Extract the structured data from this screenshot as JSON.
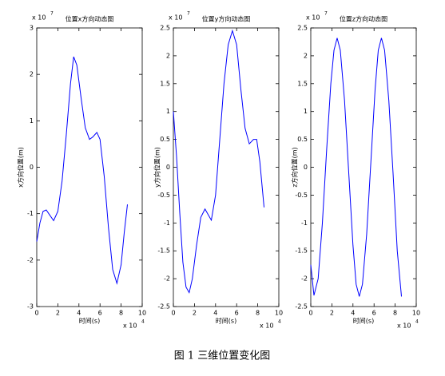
{
  "chart_data": [
    {
      "type": "line",
      "title": "位置x方向动态图",
      "xlabel": "时间(s)",
      "ylabel": "x方向位置(m)",
      "x": [
        0,
        0.3,
        0.6,
        0.9,
        1.2,
        1.6,
        2.0,
        2.4,
        2.8,
        3.2,
        3.5,
        3.8,
        4.2,
        4.6,
        5.0,
        5.3,
        5.7,
        6.0,
        6.4,
        6.8,
        7.2,
        7.6,
        8.0,
        8.3,
        8.6
      ],
      "values": [
        -1.6,
        -1.2,
        -0.95,
        -0.92,
        -1.02,
        -1.15,
        -0.95,
        -0.3,
        0.7,
        1.8,
        2.38,
        2.2,
        1.5,
        0.85,
        0.6,
        0.65,
        0.75,
        0.6,
        -0.2,
        -1.3,
        -2.2,
        -2.5,
        -2.1,
        -1.4,
        -0.8
      ],
      "color": "#0000ff",
      "xlim": [
        0,
        10
      ],
      "xticks": [
        0,
        2,
        4,
        6,
        8,
        10
      ],
      "ylim": [
        -3,
        3
      ],
      "yticks": [
        -3,
        -2,
        -1,
        0,
        1,
        2,
        3
      ],
      "x_exponent": {
        "base": "x 10",
        "power": "4"
      },
      "y_exponent": {
        "base": "x 10",
        "power": "7"
      }
    },
    {
      "type": "line",
      "title": "位置y方向动态图",
      "xlabel": "时间(s)",
      "ylabel": "y方向位置(m)",
      "x": [
        0,
        0.3,
        0.6,
        0.9,
        1.2,
        1.5,
        1.8,
        2.2,
        2.6,
        3.0,
        3.3,
        3.6,
        4.0,
        4.4,
        4.8,
        5.2,
        5.6,
        6.0,
        6.4,
        6.8,
        7.2,
        7.6,
        7.9,
        8.2,
        8.6
      ],
      "values": [
        1.0,
        0.2,
        -0.8,
        -1.7,
        -2.15,
        -2.25,
        -2.0,
        -1.4,
        -0.9,
        -0.75,
        -0.85,
        -0.95,
        -0.5,
        0.5,
        1.5,
        2.2,
        2.45,
        2.2,
        1.4,
        0.7,
        0.42,
        0.5,
        0.5,
        0.1,
        -0.72
      ],
      "color": "#0000ff",
      "xlim": [
        0,
        10
      ],
      "xticks": [
        0,
        2,
        4,
        6,
        8,
        10
      ],
      "ylim": [
        -2.5,
        2.5
      ],
      "yticks": [
        -2.5,
        -2,
        -1.5,
        -1,
        -0.5,
        0,
        0.5,
        1,
        1.5,
        2,
        2.5
      ],
      "x_exponent": {
        "base": "x 10",
        "power": "4"
      },
      "y_exponent": {
        "base": "x 10",
        "power": "7"
      }
    },
    {
      "type": "line",
      "title": "位置z方向动态图",
      "xlabel": "时间(s)",
      "ylabel": "z方向位置(m)",
      "x": [
        0,
        0.3,
        0.7,
        1.1,
        1.5,
        1.9,
        2.2,
        2.5,
        2.8,
        3.2,
        3.6,
        4.0,
        4.3,
        4.6,
        4.9,
        5.3,
        5.7,
        6.1,
        6.4,
        6.7,
        7.0,
        7.4,
        7.8,
        8.2,
        8.6
      ],
      "values": [
        -1.75,
        -2.3,
        -2.0,
        -1.0,
        0.3,
        1.5,
        2.1,
        2.32,
        2.1,
        1.2,
        -0.1,
        -1.4,
        -2.1,
        -2.32,
        -2.1,
        -1.2,
        0.1,
        1.4,
        2.1,
        2.32,
        2.1,
        1.2,
        -0.1,
        -1.5,
        -2.32
      ],
      "color": "#0000ff",
      "xlim": [
        0,
        10
      ],
      "xticks": [
        0,
        2,
        4,
        6,
        8,
        10
      ],
      "ylim": [
        -2.5,
        2.5
      ],
      "yticks": [
        -2.5,
        -2,
        -1.5,
        -1,
        -0.5,
        0,
        0.5,
        1,
        1.5,
        2,
        2.5
      ],
      "x_exponent": {
        "base": "x 10",
        "power": "4"
      },
      "y_exponent": {
        "base": "x 10",
        "power": "7"
      }
    }
  ],
  "caption": "图 1  三维位置变化图"
}
